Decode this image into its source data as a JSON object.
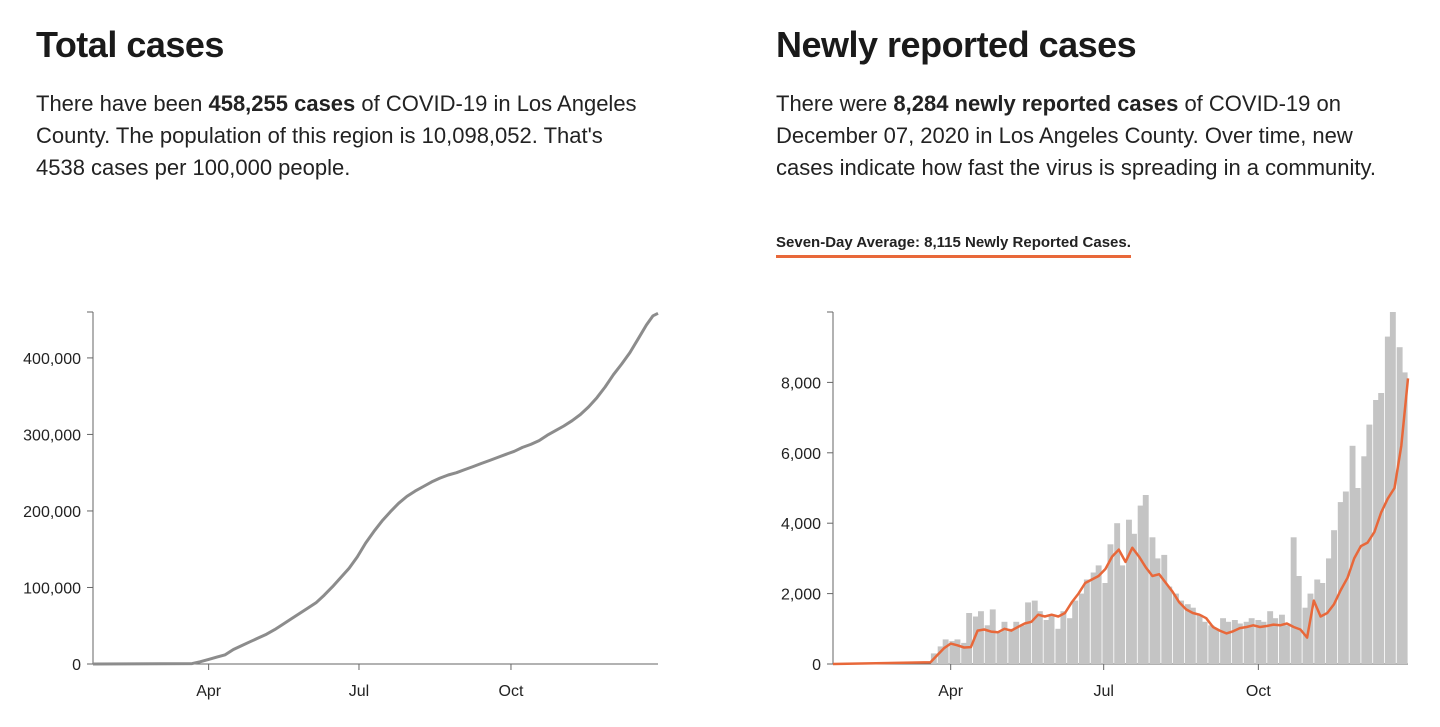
{
  "total": {
    "title": "Total cases",
    "text_1": "There have been ",
    "bold": "458,255 cases",
    "text_2": " of COVID-19 in Los Angeles County. The population of this region is 10,098,052. That's 4538 cases per 100,000 people."
  },
  "newly": {
    "title": "Newly reported cases",
    "text_1": "There were ",
    "bold": "8,284 newly reported cases",
    "text_2": " of COVID-19 on December 07, 2020 in Los Angeles County. Over time, new cases indicate how fast the virus is spreading in a community.",
    "average_label": "Seven-Day Average: 8,115 Newly Reported Cases."
  },
  "colors": {
    "line_gray": "#8c8c8c",
    "bar_gray": "#c4c4c4",
    "avg_orange": "#e8683a",
    "axis": "#666666"
  },
  "chart_data": [
    {
      "type": "line",
      "title": "Total cases",
      "xlabel": "",
      "ylabel": "",
      "x_ticks": [
        "Apr",
        "Jul",
        "Oct"
      ],
      "y_ticks": [
        "0",
        "100,000",
        "200,000",
        "300,000",
        "400,000"
      ],
      "x_range_days": [
        0,
        342
      ],
      "x_tick_days": [
        70,
        161,
        253
      ],
      "ylim": [
        0,
        460000
      ],
      "series": [
        {
          "name": "Total cases",
          "x_day": [
            0,
            60,
            65,
            70,
            75,
            80,
            85,
            90,
            95,
            100,
            105,
            110,
            115,
            120,
            125,
            130,
            135,
            140,
            145,
            150,
            155,
            160,
            165,
            170,
            175,
            180,
            185,
            190,
            195,
            200,
            205,
            210,
            215,
            220,
            225,
            230,
            235,
            240,
            245,
            250,
            255,
            260,
            265,
            270,
            275,
            280,
            285,
            290,
            295,
            300,
            305,
            310,
            315,
            320,
            325,
            330,
            335,
            339,
            342
          ],
          "values": [
            0,
            500,
            3000,
            6000,
            9000,
            12000,
            19000,
            24000,
            29000,
            34000,
            39000,
            45000,
            52000,
            59000,
            66000,
            73000,
            80000,
            90000,
            101000,
            113000,
            125000,
            140000,
            158000,
            173000,
            187000,
            199000,
            210000,
            219000,
            226000,
            232000,
            238000,
            243000,
            247000,
            250000,
            254000,
            258000,
            262000,
            266000,
            270000,
            274000,
            278000,
            283000,
            287000,
            292000,
            299000,
            305000,
            311000,
            318000,
            326000,
            336000,
            348000,
            362000,
            378000,
            392000,
            407000,
            425000,
            443000,
            455000,
            458255
          ]
        }
      ]
    },
    {
      "type": "bar",
      "title": "Newly reported cases",
      "xlabel": "",
      "ylabel": "",
      "x_ticks": [
        "Apr",
        "Jul",
        "Oct"
      ],
      "y_ticks": [
        "0",
        "2,000",
        "4,000",
        "6,000",
        "8,000"
      ],
      "x_range_days": [
        0,
        342
      ],
      "x_tick_days": [
        70,
        161,
        253
      ],
      "ylim": [
        0,
        10000
      ],
      "series": [
        {
          "name": "Daily newly reported cases",
          "bar_width_days": 3.5,
          "x_day": [
            60,
            64,
            67,
            71,
            74,
            78,
            81,
            85,
            88,
            92,
            95,
            99,
            102,
            106,
            109,
            113,
            116,
            120,
            123,
            127,
            130,
            134,
            137,
            141,
            144,
            148,
            151,
            155,
            158,
            162,
            165,
            169,
            172,
            176,
            179,
            183,
            186,
            190,
            193,
            197,
            200,
            204,
            207,
            211,
            214,
            218,
            221,
            225,
            228,
            232,
            235,
            239,
            242,
            246,
            249,
            253,
            256,
            260,
            263,
            267,
            270,
            274,
            277,
            281,
            284,
            288,
            291,
            295,
            298,
            302,
            305,
            309,
            312,
            316,
            319,
            323,
            326,
            330,
            333,
            337,
            340
          ],
          "values": [
            300,
            500,
            700,
            650,
            700,
            600,
            1450,
            1350,
            1500,
            1100,
            1550,
            900,
            1200,
            1000,
            1200,
            1100,
            1750,
            1800,
            1500,
            1250,
            1400,
            1000,
            1500,
            1300,
            1800,
            2000,
            2400,
            2600,
            2800,
            2300,
            3400,
            4000,
            2800,
            4100,
            3700,
            4500,
            4800,
            3600,
            3000,
            3100,
            2200,
            2000,
            1800,
            1700,
            1600,
            1400,
            1200,
            1100,
            1000,
            1300,
            1200,
            1250,
            1150,
            1200,
            1300,
            1250,
            1200,
            1500,
            1300,
            1400,
            1100,
            3600,
            2500,
            1600,
            2000,
            2400,
            2300,
            3000,
            3800,
            4600,
            4900,
            6200,
            5000,
            5900,
            6800,
            7500,
            7700,
            9300,
            10000,
            9000,
            8284
          ]
        },
        {
          "name": "Seven-day average",
          "type": "line",
          "x_day": [
            0,
            58,
            62,
            66,
            70,
            74,
            78,
            82,
            86,
            90,
            94,
            98,
            102,
            106,
            110,
            114,
            118,
            122,
            126,
            130,
            134,
            138,
            142,
            146,
            150,
            154,
            158,
            162,
            166,
            170,
            174,
            178,
            182,
            186,
            190,
            194,
            198,
            202,
            206,
            210,
            214,
            218,
            222,
            226,
            230,
            234,
            238,
            242,
            246,
            250,
            254,
            258,
            262,
            266,
            270,
            274,
            278,
            282,
            286,
            290,
            294,
            298,
            302,
            306,
            310,
            314,
            318,
            322,
            326,
            330,
            334,
            338,
            342
          ],
          "values": [
            0,
            50,
            250,
            450,
            580,
            530,
            470,
            480,
            950,
            980,
            920,
            900,
            1000,
            950,
            1050,
            1150,
            1200,
            1400,
            1350,
            1400,
            1350,
            1450,
            1750,
            2000,
            2300,
            2400,
            2500,
            2700,
            3050,
            3250,
            2900,
            3300,
            3050,
            2750,
            2500,
            2550,
            2300,
            2050,
            1750,
            1550,
            1450,
            1400,
            1300,
            1050,
            950,
            870,
            930,
            1020,
            1050,
            1100,
            1050,
            1080,
            1120,
            1100,
            1150,
            1050,
            980,
            750,
            1800,
            1350,
            1450,
            1700,
            2100,
            2450,
            3000,
            3350,
            3450,
            3750,
            4300,
            4700,
            5000,
            6200,
            8115
          ]
        }
      ]
    }
  ]
}
